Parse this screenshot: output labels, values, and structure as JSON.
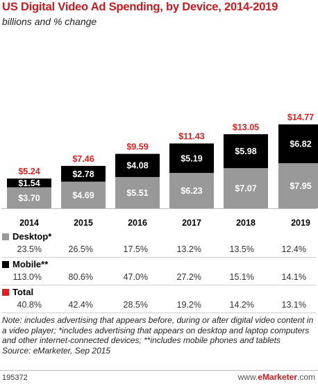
{
  "chart_data": {
    "type": "bar",
    "stacked": true,
    "title": "US Digital Video Ad Spending, by Device, 2014-2019",
    "subtitle": "billions and % change",
    "categories": [
      "2014",
      "2015",
      "2016",
      "2017",
      "2018",
      "2019"
    ],
    "series": [
      {
        "name": "Desktop*",
        "values": [
          3.7,
          4.69,
          5.51,
          6.23,
          7.07,
          7.95
        ],
        "color": "#999999"
      },
      {
        "name": "Mobile**",
        "values": [
          1.54,
          2.78,
          4.08,
          5.19,
          5.98,
          6.82
        ],
        "color": "#000000"
      }
    ],
    "totals": [
      5.24,
      7.46,
      9.59,
      11.43,
      13.05,
      14.77
    ],
    "value_labels": {
      "Desktop*": [
        "$3.70",
        "$4.69",
        "$5.51",
        "$6.23",
        "$7.07",
        "$7.95"
      ],
      "Mobile**": [
        "$1.54",
        "$2.78",
        "$4.08",
        "$5.19",
        "$5.98",
        "$6.82"
      ],
      "Total": [
        "$5.24",
        "$7.46",
        "$9.59",
        "$11.43",
        "$13.05",
        "$14.77"
      ]
    },
    "total_color": "#e0201f"
  },
  "table": [
    {
      "name": "Desktop*",
      "color": "#999999",
      "values": [
        "23.5%",
        "26.5%",
        "17.5%",
        "13.2%",
        "13.5%",
        "12.4%"
      ]
    },
    {
      "name": "Mobile**",
      "color": "#000000",
      "values": [
        "113.0%",
        "80.6%",
        "47.0%",
        "27.2%",
        "15.1%",
        "14.1%"
      ]
    },
    {
      "name": "Total",
      "color": "#e0201f",
      "values": [
        "40.8%",
        "42.4%",
        "28.5%",
        "19.2%",
        "14.2%",
        "13.1%"
      ]
    }
  ],
  "note": "Note: includes advertising that appears before, during or after digital video content in a video player; *includes advertising that appears on desktop and laptop computers and other internet-connected devices; **includes mobile phones and tablets",
  "source": "Source: eMarketer, Sep 2015",
  "footer": {
    "chart_id": "195372",
    "brand_prefix": "www.",
    "brand_name": "eMarketer",
    "brand_suffix": ".com"
  }
}
